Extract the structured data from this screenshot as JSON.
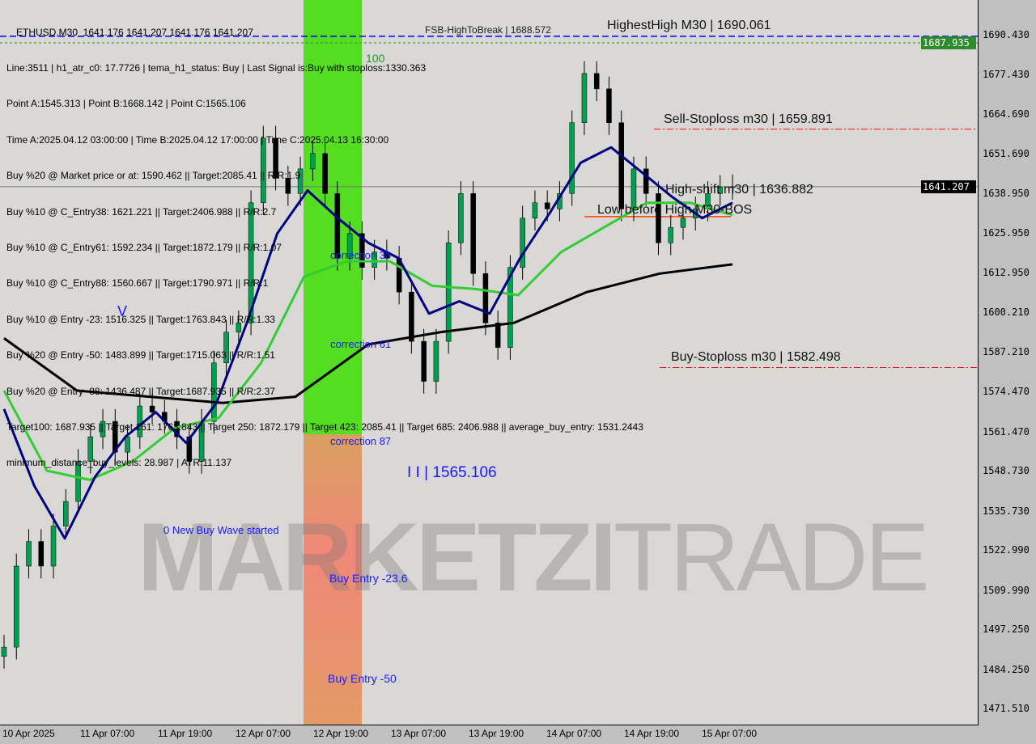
{
  "chart_data": {
    "type": "candlestick",
    "symbol_header": "ETHUSD,M30  1641.176 1641.207 1641.176 1641.207",
    "info_lines": [
      "Line:3511 | h1_atr_c0: 17.7726 | tema_h1_status: Buy | Last Signal is:Buy with stoploss:1330.363",
      "Point A:1545.313 | Point B:1668.142 | Point C:1565.106",
      "Time A:2025.04.12 03:00:00 | Time B:2025.04.12 17:00:00 | Time C:2025.04.13 16:30:00",
      "Buy %20 @ Market price or at: 1590.462 || Target:2085.41 || R/R:1.9",
      "Buy %10 @ C_Entry38: 1621.221 || Target:2406.988 || R/R:2.7",
      "Buy %10 @ C_Entry61: 1592.234 || Target:1872.179 || R/R:1.07",
      "Buy %10 @ C_Entry88: 1560.667 || Target:1790.971 || R/R:1",
      "Buy %10 @ Entry -23: 1516.325 || Target:1763.843 || R/R:1.33",
      "Buy %20 @ Entry -50: 1483.899 || Target:1715.063 || R/R:1.51",
      "Buy %20 @ Entry -88: 1436.487 || Target:1687.935 || R/R:2.37",
      "Target100: 1687.935 || Target 161: 1763.843 || Target 250: 1872.179 || Target 423: 2085.41 || Target 685: 2406.988 || average_buy_entry: 1531.2443",
      "minimum_distance_buy_levels: 28.987 | ATR:11.137"
    ],
    "overlay_text": "FSB-HighToBreak | 1688.572",
    "y_ticks": [
      1690.43,
      1677.43,
      1664.69,
      1651.69,
      1638.95,
      1625.95,
      1612.95,
      1600.21,
      1587.21,
      1574.47,
      1561.47,
      1548.73,
      1535.73,
      1522.99,
      1509.99,
      1497.25,
      1484.25,
      1471.51
    ],
    "ylim": [
      1467,
      1696
    ],
    "x_ticks": [
      "10 Apr 2025",
      "11 Apr 07:00",
      "11 Apr 19:00",
      "12 Apr 07:00",
      "12 Apr 19:00",
      "13 Apr 07:00",
      "13 Apr 19:00",
      "14 Apr 07:00",
      "14 Apr 19:00",
      "15 Apr 07:00"
    ],
    "current_price": 1641.207,
    "target_tag": 1687.935,
    "closes": [
      1491.7,
      1518,
      1526,
      1518,
      1531,
      1539,
      1552,
      1560,
      1565,
      1555,
      1560,
      1570,
      1568,
      1565,
      1560,
      1552,
      1565,
      1584,
      1594,
      1597,
      1636,
      1657,
      1644,
      1639,
      1647,
      1652,
      1639,
      1618,
      1626,
      1615,
      1620,
      1618,
      1607,
      1591,
      1578,
      1591,
      1623,
      1639,
      1613,
      1597,
      1589,
      1615,
      1631,
      1636,
      1634,
      1639,
      1662,
      1678,
      1673,
      1662,
      1634,
      1647,
      1639,
      1623,
      1628,
      1631,
      1634,
      1639,
      1641,
      1641.2
    ],
    "ma_slow": [
      1592,
      1575,
      1573,
      1571,
      1573,
      1590,
      1594,
      1597,
      1607,
      1613,
      1616
    ],
    "ma_mid": [
      1575,
      1549,
      1546,
      1552,
      1563,
      1566,
      1584,
      1612,
      1617,
      1617,
      1609,
      1608,
      1606,
      1620,
      1628,
      1636,
      1636,
      1632
    ],
    "tema": [
      1569,
      1544,
      1527,
      1547,
      1560,
      1568,
      1558,
      1571,
      1597,
      1626,
      1640,
      1631,
      1623,
      1618,
      1600,
      1604,
      1600,
      1618,
      1633,
      1649,
      1654,
      1646,
      1638,
      1631,
      1636
    ],
    "levels": [
      {
        "label": "HighestHigh   M30 | 1690.061",
        "price": 1690.061,
        "color": "#0000ff"
      },
      {
        "label": "Sell-Stoploss m30 | 1659.891",
        "price": 1659.891,
        "color": "#ff0000"
      },
      {
        "label": "High-shift m30 | 1636.882",
        "price": 1636.882,
        "color": "#333333"
      },
      {
        "label": "Low before High   M30-BOS",
        "price": 1631.5,
        "color": "#ff4400"
      },
      {
        "label": "Buy-Stoploss m30 | 1582.498",
        "price": 1582.498,
        "color": "#ff0000"
      }
    ],
    "zone_labels": [
      "100",
      "correction 38",
      "correction 61",
      "correction 87",
      "Buy Entry -23.6",
      "Buy Entry -50"
    ],
    "annotations": [
      "V",
      "0 New Buy Wave started",
      "I I | 1565.106"
    ],
    "colors": {
      "up": "#00a050",
      "down": "#000000",
      "ma_slow": "#000000",
      "ma_mid": "#33cc33",
      "tema": "#000080",
      "zone_green": "#55dd22",
      "zone_orange": "#e39a66"
    }
  },
  "watermark": {
    "bold": "MARKETZI",
    "light": "TRADE"
  }
}
